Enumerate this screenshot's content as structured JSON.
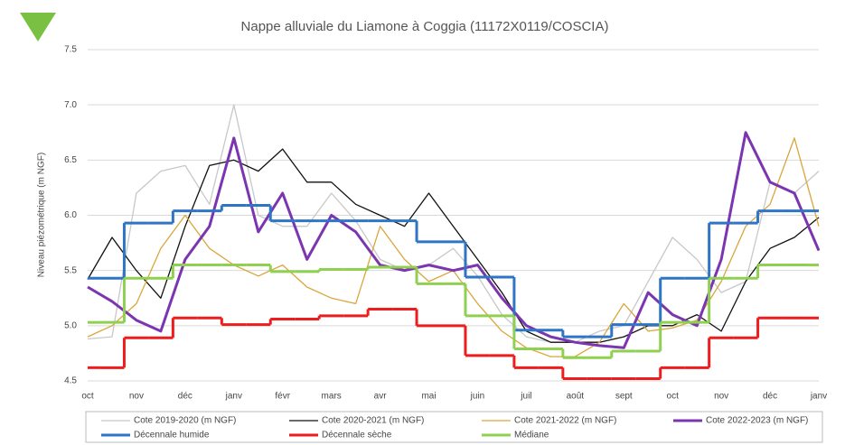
{
  "chart_data": {
    "type": "line",
    "title": "Nappe alluviale du Liamone à Coggia (11172X0119/COSCIA)",
    "y_label": "Niveau piézométrique (m NGF)",
    "categories": [
      "oct",
      null,
      "nov",
      null,
      "déc",
      null,
      "janv",
      null,
      "févr",
      null,
      "mars",
      null,
      "avr",
      null,
      "mai",
      null,
      "juin",
      null,
      "juil",
      null,
      "août",
      null,
      "sept",
      null,
      "oct",
      null,
      "nov",
      null,
      "déc",
      null,
      "janv"
    ],
    "ylim": [
      4.5,
      7.5
    ],
    "yticks": [
      4.5,
      {
        "value": 5,
        "label": "5.0"
      },
      5.5,
      {
        "value": 6,
        "label": "6.0"
      },
      6.5,
      {
        "value": 7,
        "label": "7.0"
      },
      7.5
    ],
    "grid": true,
    "legend": "bottom",
    "series": [
      {
        "name": "Cote 2019-2020 (m NGF)",
        "color": "#c8c8c8",
        "width": 1.3,
        "values": [
          4.88,
          4.9,
          6.2,
          6.4,
          6.45,
          6.1,
          7.0,
          6.0,
          5.9,
          5.9,
          6.2,
          5.95,
          5.6,
          5.5,
          5.55,
          5.7,
          5.45,
          5.1,
          4.9,
          4.85,
          4.85,
          4.95,
          5.0,
          5.4,
          5.8,
          5.6,
          5.3,
          5.4,
          6.3,
          6.2,
          6.4
        ]
      },
      {
        "name": "Cote 2020-2021 (m NGF)",
        "color": "#111111",
        "width": 1.3,
        "values": [
          5.42,
          5.8,
          5.5,
          5.25,
          5.9,
          6.45,
          6.5,
          6.4,
          6.6,
          6.3,
          6.3,
          6.1,
          6.0,
          5.9,
          6.2,
          5.9,
          5.6,
          5.3,
          4.95,
          4.85,
          4.85,
          4.85,
          4.9,
          5.0,
          5.0,
          5.1,
          4.95,
          5.4,
          5.7,
          5.8,
          5.98
        ]
      },
      {
        "name": "Cote 2021-2022 (m NGF)",
        "color": "#d9a63a",
        "width": 1.3,
        "values": [
          4.9,
          5.0,
          5.2,
          5.7,
          6.0,
          5.7,
          5.55,
          5.45,
          5.55,
          5.35,
          5.25,
          5.2,
          5.9,
          5.6,
          5.4,
          5.5,
          5.2,
          4.95,
          4.8,
          4.72,
          4.72,
          4.85,
          5.2,
          4.95,
          4.98,
          5.05,
          5.4,
          5.9,
          6.1,
          6.7,
          5.9
        ]
      },
      {
        "name": "Cote 2022-2023 (m NGF)",
        "color": "#7b35b0",
        "width": 3,
        "values": [
          5.35,
          5.22,
          5.05,
          4.95,
          5.6,
          5.9,
          6.7,
          5.85,
          6.2,
          5.6,
          6.0,
          5.85,
          5.55,
          5.5,
          5.55,
          5.5,
          5.55,
          5.25,
          5.0,
          4.9,
          4.85,
          4.82,
          4.8,
          5.3,
          5.1,
          5.0,
          5.6,
          6.75,
          6.3,
          6.2,
          5.68
        ]
      },
      {
        "name": "Décennale humide",
        "color": "#2e75c6",
        "width": 3,
        "step": true,
        "values": [
          5.43,
          5.43,
          5.93,
          5.93,
          6.04,
          6.04,
          6.09,
          6.09,
          5.95,
          5.95,
          5.95,
          5.95,
          5.95,
          5.95,
          5.76,
          5.76,
          5.44,
          5.44,
          4.96,
          4.96,
          4.9,
          4.9,
          5.01,
          5.01,
          5.43,
          5.43,
          5.93,
          5.93,
          6.04,
          6.04,
          6.04
        ]
      },
      {
        "name": "Décennale sèche",
        "color": "#ee1c1c",
        "width": 3,
        "step": true,
        "values": [
          4.62,
          4.62,
          4.89,
          4.89,
          5.07,
          5.07,
          5.01,
          5.01,
          5.06,
          5.06,
          5.09,
          5.09,
          5.15,
          5.15,
          5.0,
          5.0,
          4.73,
          4.73,
          4.62,
          4.62,
          4.52,
          4.52,
          4.52,
          4.52,
          4.62,
          4.62,
          4.89,
          4.89,
          5.07,
          5.07,
          5.07
        ]
      },
      {
        "name": "Médiane",
        "color": "#8fd050",
        "width": 3,
        "step": true,
        "values": [
          5.03,
          5.03,
          5.43,
          5.43,
          5.55,
          5.55,
          5.55,
          5.55,
          5.49,
          5.49,
          5.51,
          5.51,
          5.53,
          5.53,
          5.38,
          5.38,
          5.09,
          5.09,
          4.79,
          4.79,
          4.71,
          4.71,
          4.77,
          4.77,
          5.03,
          5.03,
          5.43,
          5.43,
          5.55,
          5.55,
          5.55
        ]
      }
    ]
  }
}
